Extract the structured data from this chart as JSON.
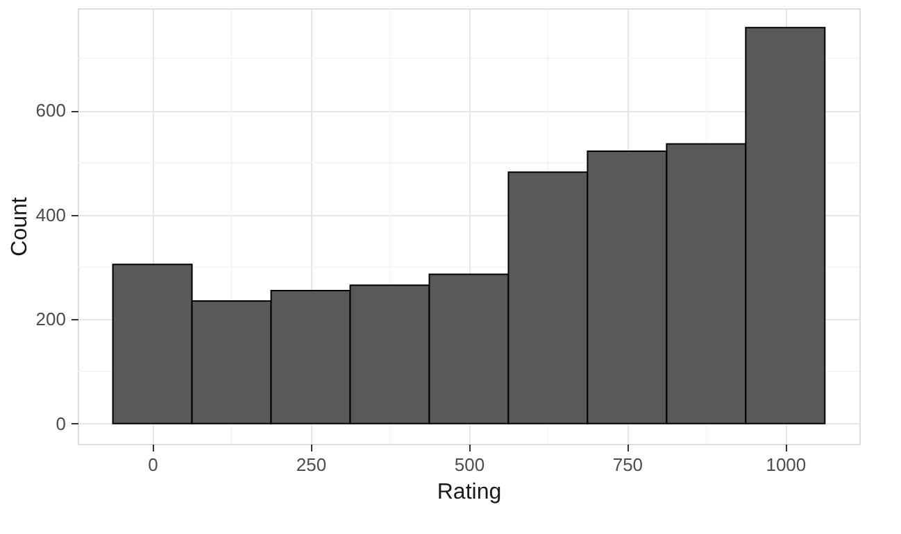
{
  "chart_data": {
    "type": "histogram",
    "xlabel": "Rating",
    "ylabel": "Count",
    "bins": [
      -62.5,
      62.5,
      187.5,
      312.5,
      437.5,
      562.5,
      687.5,
      812.5,
      937.5,
      1062.5
    ],
    "values": [
      305,
      235,
      255,
      265,
      286,
      482,
      522,
      536,
      759
    ],
    "color": "#595959",
    "xlim": [
      -118,
      1117
    ],
    "ylim": [
      -39,
      796
    ],
    "xticks": [
      0,
      250,
      500,
      750,
      1000
    ],
    "yticks": [
      0,
      200,
      400,
      600
    ],
    "grid": true
  }
}
